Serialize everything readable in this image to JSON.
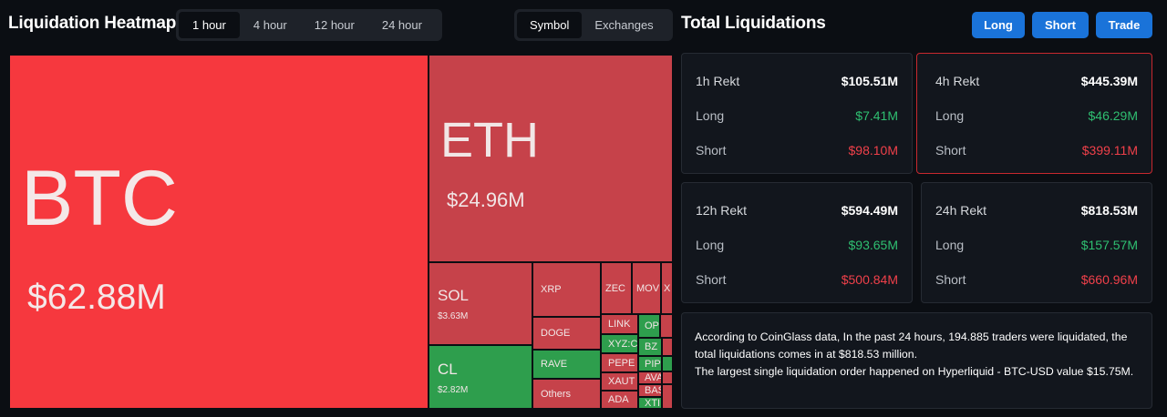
{
  "header": {
    "left_title": "Liquidation Heatmap",
    "right_title": "Total Liquidations"
  },
  "time_tabs": [
    "1 hour",
    "4 hour",
    "12 hour",
    "24 hour"
  ],
  "view_tabs": [
    "Symbol",
    "Exchanges"
  ],
  "actions": {
    "long": "Long",
    "short": "Short",
    "trade": "Trade"
  },
  "heatmap": {
    "btc": {
      "symbol": "BTC",
      "value": "$62.88M"
    },
    "eth": {
      "symbol": "ETH",
      "value": "$24.96M"
    },
    "sol": {
      "symbol": "SOL",
      "value": "$3.63M"
    },
    "cl": {
      "symbol": "CL",
      "value": "$2.82M"
    },
    "small": [
      "XRP",
      "DOGE",
      "RAVE",
      "Others",
      "ZEC",
      "MOV",
      "X",
      "LINK",
      "OP",
      "XYZ:C",
      "BZ",
      "PEPE",
      "PIP",
      "XAUT",
      "AVA",
      "BAS",
      "ADA",
      "XTI"
    ]
  },
  "totals": {
    "h1": {
      "label": "1h Rekt",
      "total": "$105.51M",
      "long_label": "Long",
      "long": "$7.41M",
      "short_label": "Short",
      "short": "$98.10M"
    },
    "h4": {
      "label": "4h Rekt",
      "total": "$445.39M",
      "long_label": "Long",
      "long": "$46.29M",
      "short_label": "Short",
      "short": "$399.11M"
    },
    "h12": {
      "label": "12h Rekt",
      "total": "$594.49M",
      "long_label": "Long",
      "long": "$93.65M",
      "short_label": "Short",
      "short": "$500.84M"
    },
    "h24": {
      "label": "24h Rekt",
      "total": "$818.53M",
      "long_label": "Long",
      "long": "$157.57M",
      "short_label": "Short",
      "short": "$660.96M"
    }
  },
  "info": {
    "line1": "According to CoinGlass data, In the past 24 hours, 194.885 traders were liquidated, the total liquidations comes in at $818.53 million.",
    "line2": "The largest single liquidation order happened on Hyperliquid - BTC-USD value $15.75M."
  },
  "colors": {
    "accent": "#1a73d9",
    "up": "#2fbf71",
    "down": "#f0404a",
    "tile_red": "#c6424a",
    "tile_bright": "#f6383e",
    "tile_green": "#2e9e4d"
  }
}
